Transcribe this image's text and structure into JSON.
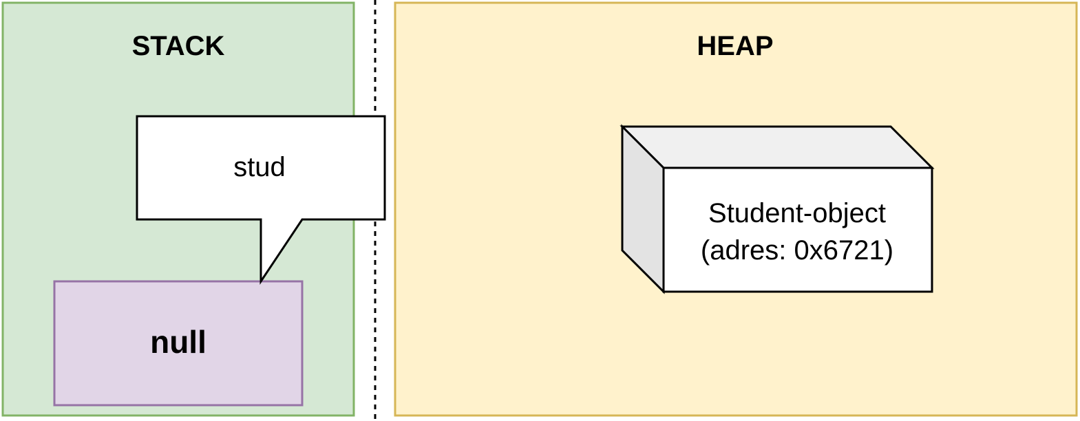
{
  "stack": {
    "title": "STACK",
    "fill": "#d5e8d4",
    "stroke": "#82b366"
  },
  "heap": {
    "title": "HEAP",
    "fill": "#fff2cc",
    "stroke": "#d6b656"
  },
  "variable": {
    "name": "stud",
    "value": "null",
    "value_fill": "#e1d5e7",
    "value_stroke": "#9673a6"
  },
  "heap_object": {
    "line1": "Student-object",
    "line2": "(adres: 0x6721)"
  }
}
